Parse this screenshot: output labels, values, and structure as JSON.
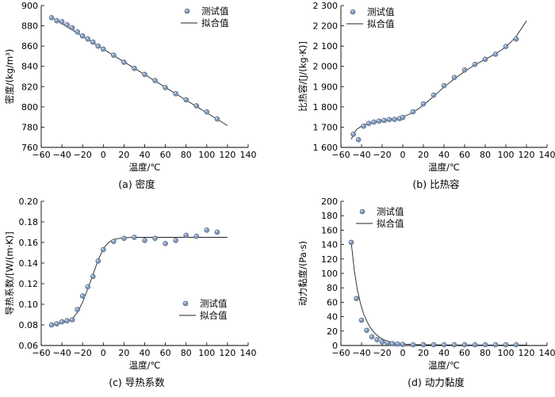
{
  "chart_data": [
    {
      "type": "scatter",
      "caption": "(a)  密度",
      "xlabel": "温度/℃",
      "ylabel": "密度/(kg/m³)",
      "xlim": [
        -60,
        140
      ],
      "ylim": [
        760,
        900
      ],
      "xticks": [
        -60,
        -40,
        -20,
        0,
        20,
        40,
        60,
        80,
        100,
        120,
        140
      ],
      "yticks": [
        760,
        780,
        800,
        820,
        840,
        860,
        880,
        900
      ],
      "tick_labels_x": [
        "−60",
        "−40",
        "−20",
        "0",
        "20",
        "40",
        "60",
        "80",
        "100",
        "120",
        "140"
      ],
      "tick_labels_y": [
        "760",
        "780",
        "800",
        "820",
        "840",
        "860",
        "880",
        "900"
      ],
      "legend": {
        "position": "top-right",
        "entries": [
          "测试值",
          "拟合值"
        ]
      },
      "series": [
        {
          "name": "测试值",
          "kind": "points",
          "x": [
            -50,
            -45,
            -40,
            -35,
            -30,
            -25,
            -20,
            -15,
            -10,
            -5,
            0,
            10,
            20,
            30,
            40,
            50,
            60,
            70,
            80,
            90,
            100,
            110
          ],
          "y": [
            888,
            885,
            884,
            881,
            878,
            874,
            870,
            867,
            864,
            860,
            857,
            851,
            844,
            838,
            832,
            826,
            819,
            813,
            807,
            801,
            795,
            788
          ]
        },
        {
          "name": "拟合值",
          "kind": "line",
          "x": [
            -50,
            120
          ],
          "y": [
            888.5,
            781.5
          ]
        }
      ]
    },
    {
      "type": "scatter",
      "caption": "(b)  比热容",
      "xlabel": "温度/℃",
      "ylabel": "比热容/[J/(kg·K)]",
      "xlim": [
        -60,
        140
      ],
      "ylim": [
        1600,
        2300
      ],
      "xticks": [
        -60,
        -40,
        -20,
        0,
        20,
        40,
        60,
        80,
        100,
        120,
        140
      ],
      "yticks": [
        1600,
        1700,
        1800,
        1900,
        2000,
        2100,
        2200,
        2300
      ],
      "tick_labels_x": [
        "−60",
        "−40",
        "−20",
        "0",
        "20",
        "40",
        "60",
        "80",
        "100",
        "120",
        "140"
      ],
      "tick_labels_y": [
        "1 600",
        "1 700",
        "1 800",
        "1 900",
        "2 000",
        "2 100",
        "2 200",
        "2 300"
      ],
      "legend": {
        "position": "top-left",
        "entries": [
          "测试值",
          "拟合值"
        ]
      },
      "series": [
        {
          "name": "测试值",
          "kind": "points",
          "x": [
            -48,
            -43,
            -38,
            -33,
            -28,
            -23,
            -18,
            -13,
            -8,
            -3,
            0,
            10,
            20,
            30,
            40,
            50,
            60,
            70,
            80,
            90,
            100,
            110
          ],
          "y": [
            1665,
            1638,
            1705,
            1718,
            1725,
            1730,
            1733,
            1737,
            1738,
            1742,
            1748,
            1776,
            1815,
            1858,
            1905,
            1945,
            1982,
            2010,
            2035,
            2060,
            2098,
            2135
          ]
        },
        {
          "name": "拟合值",
          "kind": "line",
          "x": [
            -50,
            -45,
            -40,
            -35,
            -30,
            -20,
            -10,
            0,
            10,
            20,
            30,
            40,
            50,
            60,
            70,
            80,
            90,
            100,
            105,
            110,
            115,
            120
          ],
          "y": [
            1640,
            1688,
            1705,
            1715,
            1722,
            1731,
            1738,
            1750,
            1772,
            1808,
            1852,
            1898,
            1938,
            1975,
            2007,
            2035,
            2062,
            2095,
            2120,
            2148,
            2185,
            2225
          ]
        }
      ]
    },
    {
      "type": "scatter",
      "caption": "(c)  导热系数",
      "xlabel": "温度/℃",
      "ylabel": "导热系数/[W/(m·K)]",
      "xlim": [
        -60,
        140
      ],
      "ylim": [
        0.06,
        0.2
      ],
      "xticks": [
        -60,
        -40,
        -20,
        0,
        20,
        40,
        60,
        80,
        100,
        120,
        140
      ],
      "yticks": [
        0.06,
        0.08,
        0.1,
        0.12,
        0.14,
        0.16,
        0.18,
        0.2
      ],
      "tick_labels_x": [
        "−60",
        "−40",
        "−20",
        "0",
        "20",
        "40",
        "60",
        "80",
        "100",
        "120",
        "140"
      ],
      "tick_labels_y": [
        "0.06",
        "0.08",
        "0.10",
        "0.12",
        "0.14",
        "0.16",
        "0.18",
        "0.20"
      ],
      "legend": {
        "position": "bottom-right",
        "entries": [
          "测试值",
          "拟合值"
        ]
      },
      "series": [
        {
          "name": "测试值",
          "kind": "points",
          "x": [
            -50,
            -45,
            -40,
            -35,
            -30,
            -25,
            -20,
            -15,
            -10,
            -5,
            0,
            10,
            20,
            30,
            40,
            50,
            60,
            70,
            80,
            90,
            100,
            110
          ],
          "y": [
            0.08,
            0.081,
            0.083,
            0.084,
            0.085,
            0.095,
            0.108,
            0.117,
            0.127,
            0.142,
            0.153,
            0.161,
            0.164,
            0.165,
            0.162,
            0.164,
            0.159,
            0.162,
            0.167,
            0.166,
            0.172,
            0.17
          ]
        },
        {
          "name": "拟合值",
          "kind": "line",
          "x": [
            -50,
            -40,
            -35,
            -30,
            -25,
            -20,
            -15,
            -10,
            -5,
            0,
            5,
            10,
            20,
            30,
            60,
            90,
            120
          ],
          "y": [
            0.08,
            0.082,
            0.083,
            0.086,
            0.092,
            0.102,
            0.115,
            0.129,
            0.143,
            0.154,
            0.16,
            0.163,
            0.1647,
            0.165,
            0.165,
            0.165,
            0.165
          ]
        }
      ]
    },
    {
      "type": "scatter",
      "caption": "(d)  动力黏度",
      "xlabel": "温度/℃",
      "ylabel": "动力黏度/(Pa·s)",
      "xlim": [
        -60,
        140
      ],
      "ylim": [
        0,
        200
      ],
      "xticks": [
        -60,
        -40,
        -20,
        0,
        20,
        40,
        60,
        80,
        100,
        120,
        140
      ],
      "yticks": [
        0,
        20,
        40,
        60,
        80,
        100,
        120,
        140,
        160,
        180,
        200
      ],
      "tick_labels_x": [
        "−60",
        "−40",
        "−20",
        "0",
        "20",
        "40",
        "60",
        "80",
        "100",
        "120",
        "140"
      ],
      "tick_labels_y": [
        "0",
        "20",
        "40",
        "60",
        "80",
        "100",
        "120",
        "140",
        "160",
        "180",
        "200"
      ],
      "legend": {
        "position": "top-center",
        "entries": [
          "测试值",
          "拟合值"
        ]
      },
      "series": [
        {
          "name": "测试值",
          "kind": "points",
          "x": [
            -50,
            -45,
            -40,
            -35,
            -30,
            -25,
            -20,
            -15,
            -10,
            -5,
            0,
            10,
            20,
            30,
            40,
            50,
            60,
            70,
            80,
            90,
            100,
            110
          ],
          "y": [
            143,
            65,
            35,
            21,
            12,
            8,
            5,
            3.5,
            2.5,
            2,
            1.5,
            1,
            1,
            1,
            1,
            1,
            1,
            1,
            1,
            1,
            1,
            1
          ]
        },
        {
          "name": "拟合值",
          "kind": "line",
          "x": [
            -50,
            -47,
            -44,
            -41,
            -38,
            -35,
            -32,
            -29,
            -26,
            -23,
            -20,
            -15,
            -10,
            -5,
            0,
            10,
            20,
            40,
            60,
            80,
            100,
            120
          ],
          "y": [
            143,
            104,
            77,
            58,
            44,
            34,
            26,
            20,
            15.5,
            12,
            9,
            6,
            4,
            2.8,
            2,
            1.3,
            1.0,
            0.8,
            0.7,
            0.6,
            0.5,
            0.5
          ]
        }
      ]
    }
  ]
}
